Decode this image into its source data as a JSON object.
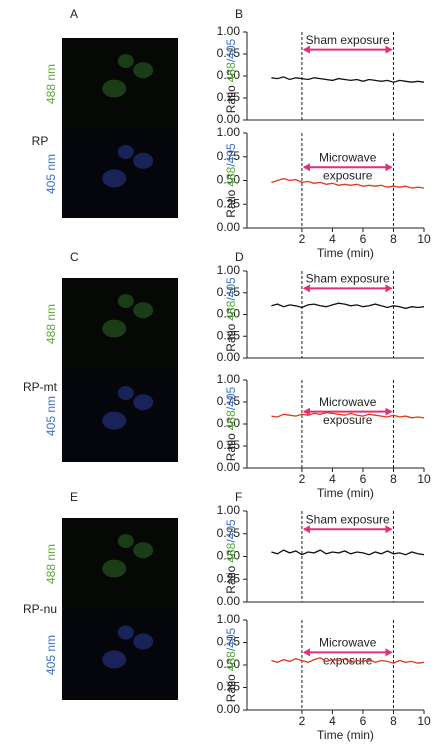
{
  "panels": [
    {
      "image_letter": "A",
      "chart_letter": "B",
      "row_label": "RP",
      "channels": [
        "488 nm",
        "405 nm"
      ]
    },
    {
      "image_letter": "C",
      "chart_letter": "D",
      "row_label": "RP-mt",
      "channels": [
        "488 nm",
        "405 nm"
      ]
    },
    {
      "image_letter": "E",
      "chart_letter": "F",
      "row_label": "RP-nu",
      "channels": [
        "488 nm",
        "405 nm"
      ]
    }
  ],
  "chart_data": [
    {
      "type": "line",
      "ylabel_parts": [
        "Ratio",
        "488",
        "/405"
      ],
      "annotation_lines": [
        "Sham exposure"
      ],
      "exposure": [
        2,
        8
      ],
      "x": [
        0,
        0.4,
        0.8,
        1.2,
        1.6,
        2,
        2.4,
        2.8,
        3.2,
        3.6,
        4,
        4.4,
        4.8,
        5.2,
        5.6,
        6,
        6.4,
        6.8,
        7.2,
        7.6,
        8,
        8.4,
        8.8,
        9.2,
        9.6,
        10
      ],
      "series": [
        {
          "color": "#111111",
          "values": [
            0.48,
            0.47,
            0.49,
            0.46,
            0.48,
            0.47,
            0.46,
            0.48,
            0.47,
            0.46,
            0.45,
            0.47,
            0.46,
            0.45,
            0.46,
            0.44,
            0.46,
            0.45,
            0.44,
            0.45,
            0.43,
            0.45,
            0.44,
            0.43,
            0.44,
            0.43
          ]
        }
      ],
      "xlim": [
        -1.6,
        10
      ],
      "ylim": [
        0,
        1
      ],
      "yticks": [
        {
          "value": 0,
          "label": "0.00"
        },
        {
          "value": 0.25,
          "label": "0.25"
        },
        {
          "value": 0.5,
          "label": "0.50"
        },
        {
          "value": 0.75,
          "label": "0.75"
        },
        {
          "value": 1,
          "label": "1.00"
        }
      ]
    },
    {
      "type": "line",
      "ylabel_parts": [
        "Ratio",
        "488",
        "/405"
      ],
      "annotation_lines": [
        "Microwave",
        "exposure"
      ],
      "exposure": [
        2,
        8
      ],
      "xlabel": "Time (min)",
      "x": [
        0,
        0.4,
        0.8,
        1.2,
        1.6,
        2,
        2.4,
        2.8,
        3.2,
        3.6,
        4,
        4.4,
        4.8,
        5.2,
        5.6,
        6,
        6.4,
        6.8,
        7.2,
        7.6,
        8,
        8.4,
        8.8,
        9.2,
        9.6,
        10
      ],
      "series": [
        {
          "color": "#e03a1e",
          "values": [
            0.48,
            0.5,
            0.52,
            0.5,
            0.51,
            0.48,
            0.49,
            0.47,
            0.48,
            0.46,
            0.47,
            0.45,
            0.46,
            0.45,
            0.46,
            0.44,
            0.45,
            0.44,
            0.45,
            0.43,
            0.44,
            0.43,
            0.44,
            0.42,
            0.43,
            0.42
          ]
        }
      ],
      "xlim": [
        -1.6,
        10
      ],
      "ylim": [
        0,
        1
      ],
      "xticks": [
        2,
        4,
        6,
        8,
        10
      ],
      "yticks": [
        {
          "value": 0,
          "label": "0.00"
        },
        {
          "value": 0.25,
          "label": "0.25"
        },
        {
          "value": 0.5,
          "label": "0.50"
        },
        {
          "value": 0.75,
          "label": "0.75"
        },
        {
          "value": 1,
          "label": "1.00"
        }
      ]
    },
    {
      "type": "line",
      "ylabel_parts": [
        "Ratio",
        "488",
        "/405"
      ],
      "annotation_lines": [
        "Sham exposure"
      ],
      "exposure": [
        2,
        8
      ],
      "x": [
        0,
        0.4,
        0.8,
        1.2,
        1.6,
        2,
        2.4,
        2.8,
        3.2,
        3.6,
        4,
        4.4,
        4.8,
        5.2,
        5.6,
        6,
        6.4,
        6.8,
        7.2,
        7.6,
        8,
        8.4,
        8.8,
        9.2,
        9.6,
        10
      ],
      "series": [
        {
          "color": "#111111",
          "values": [
            0.6,
            0.62,
            0.59,
            0.61,
            0.6,
            0.58,
            0.61,
            0.62,
            0.6,
            0.59,
            0.61,
            0.63,
            0.62,
            0.6,
            0.61,
            0.59,
            0.6,
            0.62,
            0.6,
            0.58,
            0.6,
            0.59,
            0.57,
            0.59,
            0.58,
            0.59
          ]
        }
      ],
      "xlim": [
        -1.6,
        10
      ],
      "ylim": [
        0,
        1
      ],
      "yticks": [
        {
          "value": 0,
          "label": "0.00"
        },
        {
          "value": 0.25,
          "label": "0.25"
        },
        {
          "value": 0.5,
          "label": "0.50"
        },
        {
          "value": 0.75,
          "label": "0.75"
        },
        {
          "value": 1,
          "label": "1.00"
        }
      ]
    },
    {
      "type": "line",
      "ylabel_parts": [
        "Ratio",
        "488",
        "/405"
      ],
      "annotation_lines": [
        "Microwave",
        "exposure"
      ],
      "exposure": [
        2,
        8
      ],
      "xlabel": "Time (min)",
      "x": [
        0,
        0.4,
        0.8,
        1.2,
        1.6,
        2,
        2.4,
        2.8,
        3.2,
        3.6,
        4,
        4.4,
        4.8,
        5.2,
        5.6,
        6,
        6.4,
        6.8,
        7.2,
        7.6,
        8,
        8.4,
        8.8,
        9.2,
        9.6,
        10
      ],
      "series": [
        {
          "color": "#e03a1e",
          "values": [
            0.59,
            0.58,
            0.61,
            0.6,
            0.59,
            0.61,
            0.6,
            0.62,
            0.61,
            0.63,
            0.62,
            0.61,
            0.6,
            0.62,
            0.6,
            0.59,
            0.61,
            0.6,
            0.59,
            0.58,
            0.6,
            0.58,
            0.59,
            0.57,
            0.58,
            0.57
          ]
        }
      ],
      "xlim": [
        -1.6,
        10
      ],
      "ylim": [
        0,
        1
      ],
      "xticks": [
        2,
        4,
        6,
        8,
        10
      ],
      "yticks": [
        {
          "value": 0,
          "label": "0.00"
        },
        {
          "value": 0.25,
          "label": "0.25"
        },
        {
          "value": 0.5,
          "label": "0.50"
        },
        {
          "value": 0.75,
          "label": "0.75"
        },
        {
          "value": 1,
          "label": "1.00"
        }
      ]
    },
    {
      "type": "line",
      "ylabel_parts": [
        "Ratio",
        "488",
        "/405"
      ],
      "annotation_lines": [
        "Sham exposure"
      ],
      "exposure": [
        2,
        8
      ],
      "x": [
        0,
        0.4,
        0.8,
        1.2,
        1.6,
        2,
        2.4,
        2.8,
        3.2,
        3.6,
        4,
        4.4,
        4.8,
        5.2,
        5.6,
        6,
        6.4,
        6.8,
        7.2,
        7.6,
        8,
        8.4,
        8.8,
        9.2,
        9.6,
        10
      ],
      "series": [
        {
          "color": "#111111",
          "values": [
            0.55,
            0.53,
            0.57,
            0.54,
            0.56,
            0.52,
            0.55,
            0.54,
            0.57,
            0.53,
            0.55,
            0.54,
            0.56,
            0.53,
            0.55,
            0.54,
            0.52,
            0.55,
            0.53,
            0.56,
            0.53,
            0.54,
            0.52,
            0.55,
            0.53,
            0.52
          ]
        }
      ],
      "xlim": [
        -1.6,
        10
      ],
      "ylim": [
        0,
        1
      ],
      "yticks": [
        {
          "value": 0,
          "label": "0.00"
        },
        {
          "value": 0.25,
          "label": "0.25"
        },
        {
          "value": 0.5,
          "label": "0.50"
        },
        {
          "value": 0.75,
          "label": "0.75"
        },
        {
          "value": 1,
          "label": "1.00"
        }
      ]
    },
    {
      "type": "line",
      "ylabel_parts": [
        "Ratio",
        "488",
        "/405"
      ],
      "annotation_lines": [
        "Microwave",
        "exposure"
      ],
      "exposure": [
        2,
        8
      ],
      "xlabel": "Time (min)",
      "x": [
        0,
        0.4,
        0.8,
        1.2,
        1.6,
        2,
        2.4,
        2.8,
        3.2,
        3.6,
        4,
        4.4,
        4.8,
        5.2,
        5.6,
        6,
        6.4,
        6.8,
        7.2,
        7.6,
        8,
        8.4,
        8.8,
        9.2,
        9.6,
        10
      ],
      "series": [
        {
          "color": "#e03a1e",
          "values": [
            0.55,
            0.53,
            0.56,
            0.54,
            0.57,
            0.55,
            0.53,
            0.56,
            0.58,
            0.54,
            0.56,
            0.55,
            0.57,
            0.53,
            0.55,
            0.54,
            0.56,
            0.53,
            0.55,
            0.54,
            0.52,
            0.55,
            0.53,
            0.54,
            0.52,
            0.53
          ]
        }
      ],
      "xlim": [
        -1.6,
        10
      ],
      "ylim": [
        0,
        1
      ],
      "xticks": [
        2,
        4,
        6,
        8,
        10
      ],
      "yticks": [
        {
          "value": 0,
          "label": "0.00"
        },
        {
          "value": 0.25,
          "label": "0.25"
        },
        {
          "value": 0.5,
          "label": "0.50"
        },
        {
          "value": 0.75,
          "label": "0.75"
        },
        {
          "value": 1,
          "label": "1.00"
        }
      ]
    }
  ]
}
